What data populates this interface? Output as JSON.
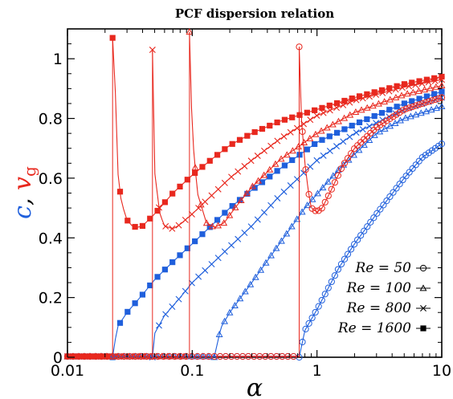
{
  "chart_data": {
    "type": "line",
    "title": "PCF dispersion relation",
    "xlabel": "α",
    "ylabel_parts": [
      "c",
      ", ",
      "v",
      "g"
    ],
    "xscale": "log",
    "xlim": [
      0.01,
      10
    ],
    "ylim": [
      0,
      1.1
    ],
    "xticks": [
      0.01,
      0.1,
      1,
      10
    ],
    "xtick_labels": [
      "0.01",
      "0.1",
      "1",
      "10"
    ],
    "yticks": [
      0,
      0.2,
      0.4,
      0.6,
      0.8,
      1
    ],
    "ytick_labels": [
      "0",
      "0.2",
      "0.4",
      "0.6",
      "0.8",
      "1"
    ],
    "legend_position": "lower-right",
    "colors": {
      "c": "#1f5fdc",
      "vg": "#e8281e"
    },
    "legend": [
      {
        "label": "Re = 50",
        "marker": "circle"
      },
      {
        "label": "Re = 100",
        "marker": "triangle"
      },
      {
        "label": "Re = 800",
        "marker": "x"
      },
      {
        "label": "Re = 1600",
        "marker": "square"
      }
    ],
    "series": [
      {
        "quantity": "c",
        "Re": 50,
        "marker": "circle",
        "onset": 0.72,
        "x": [
          0.72,
          0.8,
          1.0,
          1.5,
          2,
          3,
          5,
          7,
          10
        ],
        "y": [
          0.0,
          0.09,
          0.16,
          0.3,
          0.38,
          0.48,
          0.6,
          0.67,
          0.715
        ]
      },
      {
        "quantity": "c",
        "Re": 100,
        "marker": "triangle",
        "onset": 0.15,
        "x": [
          0.15,
          0.17,
          0.2,
          0.3,
          0.5,
          0.8,
          1.5,
          3,
          5,
          10
        ],
        "y": [
          0.0,
          0.1,
          0.15,
          0.25,
          0.38,
          0.5,
          0.63,
          0.75,
          0.8,
          0.84
        ]
      },
      {
        "quantity": "c",
        "Re": 800,
        "marker": "x",
        "onset": 0.048,
        "x": [
          0.048,
          0.05,
          0.06,
          0.08,
          0.1,
          0.15,
          0.2,
          0.3,
          0.5,
          1,
          2,
          5,
          10
        ],
        "y": [
          0.0,
          0.08,
          0.14,
          0.2,
          0.25,
          0.32,
          0.37,
          0.44,
          0.54,
          0.66,
          0.75,
          0.83,
          0.87
        ]
      },
      {
        "quantity": "c",
        "Re": 1600,
        "marker": "square",
        "onset": 0.023,
        "x": [
          0.023,
          0.025,
          0.03,
          0.04,
          0.05,
          0.07,
          0.1,
          0.15,
          0.2,
          0.3,
          0.5,
          1,
          2,
          5,
          10
        ],
        "y": [
          0.0,
          0.1,
          0.15,
          0.21,
          0.26,
          0.32,
          0.38,
          0.45,
          0.5,
          0.56,
          0.63,
          0.72,
          0.78,
          0.85,
          0.89
        ]
      },
      {
        "quantity": "vg",
        "Re": 50,
        "marker": "circle",
        "onset": 0.72,
        "x": [
          0.72,
          0.75,
          0.8,
          0.85,
          0.9,
          1.0,
          1.1,
          1.3,
          1.6,
          2,
          3,
          5,
          7,
          10
        ],
        "y": [
          1.04,
          0.8,
          0.65,
          0.56,
          0.5,
          0.487,
          0.5,
          0.56,
          0.64,
          0.7,
          0.77,
          0.83,
          0.85,
          0.87
        ]
      },
      {
        "quantity": "vg",
        "Re": 100,
        "marker": "triangle",
        "onset": 0.095,
        "x": [
          0.095,
          0.1,
          0.11,
          0.13,
          0.15,
          0.18,
          0.22,
          0.3,
          0.5,
          1,
          2,
          5,
          10
        ],
        "y": [
          1.09,
          0.75,
          0.55,
          0.45,
          0.435,
          0.45,
          0.5,
          0.57,
          0.66,
          0.75,
          0.82,
          0.88,
          0.91
        ]
      },
      {
        "quantity": "vg",
        "Re": 800,
        "marker": "x",
        "onset": 0.048,
        "x": [
          0.048,
          0.05,
          0.055,
          0.06,
          0.07,
          0.08,
          0.1,
          0.15,
          0.2,
          0.3,
          0.5,
          1,
          2,
          5,
          10
        ],
        "y": [
          1.03,
          0.62,
          0.48,
          0.44,
          0.43,
          0.445,
          0.48,
          0.55,
          0.6,
          0.66,
          0.73,
          0.81,
          0.86,
          0.905,
          0.93
        ]
      },
      {
        "quantity": "vg",
        "Re": 1600,
        "marker": "square",
        "onset": 0.023,
        "x": [
          0.023,
          0.024,
          0.025,
          0.027,
          0.03,
          0.033,
          0.036,
          0.04,
          0.05,
          0.07,
          0.1,
          0.15,
          0.2,
          0.3,
          0.5,
          1,
          2,
          5,
          10
        ],
        "y": [
          1.07,
          0.95,
          0.64,
          0.52,
          0.46,
          0.44,
          0.435,
          0.44,
          0.48,
          0.55,
          0.61,
          0.67,
          0.71,
          0.75,
          0.79,
          0.83,
          0.87,
          0.915,
          0.94
        ]
      }
    ]
  }
}
